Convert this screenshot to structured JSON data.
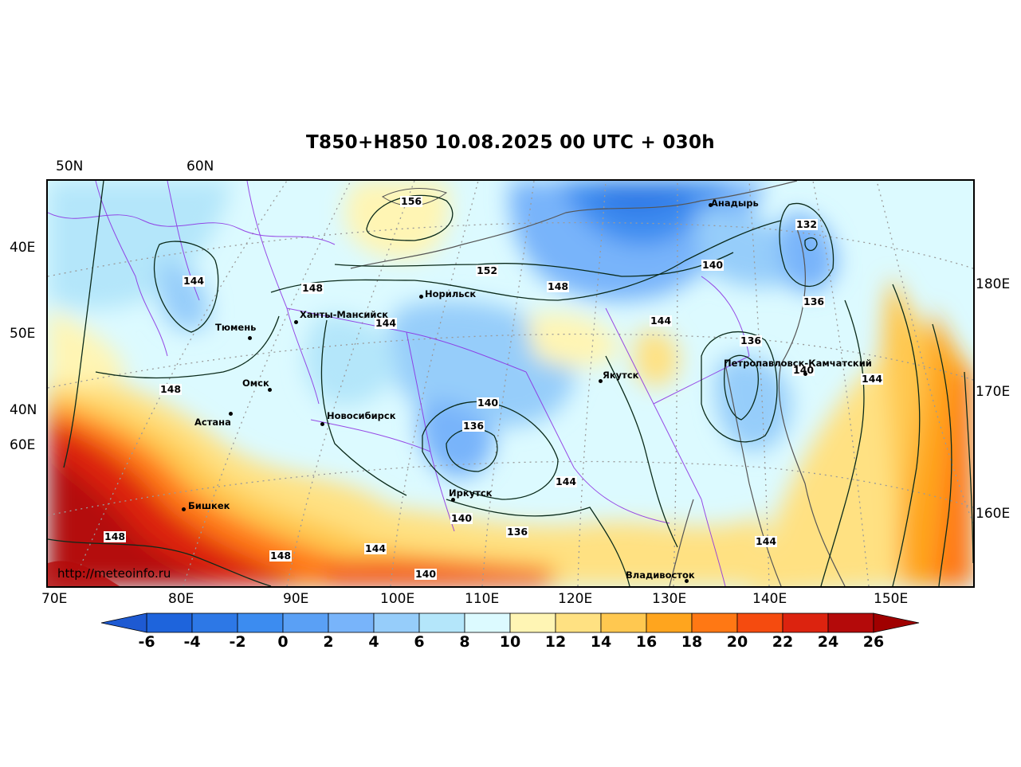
{
  "title": "T850+H850 10.08.2025 00 UTC + 030h",
  "watermark": "http://meteoinfo.ru",
  "axis_labels": {
    "top": [
      "50N",
      "60N"
    ],
    "left": [
      "40E",
      "50E",
      "40N",
      "60E"
    ],
    "right": [
      "180E",
      "170E",
      "160E"
    ],
    "bottom": [
      "70E",
      "80E",
      "90E",
      "100E",
      "110E",
      "120E",
      "130E",
      "140E",
      "150E"
    ]
  },
  "cities": [
    "Норильск",
    "Ханты-Мансийск",
    "Тюмень",
    "Омск",
    "Астана",
    "Новосибирск",
    "Бишкек",
    "Иркутск",
    "Якутск",
    "Анадырь",
    "Петропавловск-Камчатский",
    "Владивосток"
  ],
  "contour_labels": [
    "156",
    "152",
    "148",
    "148",
    "144",
    "144",
    "148",
    "140",
    "132",
    "136",
    "144",
    "136",
    "140",
    "144",
    "140",
    "136",
    "144",
    "148",
    "148",
    "144",
    "140",
    "140",
    "136",
    "144"
  ],
  "colorbar": {
    "ticks": [
      "-6",
      "-4",
      "-2",
      "0",
      "2",
      "4",
      "6",
      "8",
      "10",
      "12",
      "14",
      "16",
      "18",
      "20",
      "22",
      "24",
      "26"
    ],
    "colors": [
      "#1e64dc",
      "#2d78e6",
      "#3c8cf0",
      "#5aa0f5",
      "#78b4fa",
      "#96cdfa",
      "#b4e6fa",
      "#dcfaff",
      "#fff5b4",
      "#ffe182",
      "#ffc850",
      "#ffa51e",
      "#ff7814",
      "#f54b0f",
      "#dc230f",
      "#b40a0a"
    ],
    "under_color": "#1e5ad2",
    "over_color": "#a00000"
  }
}
